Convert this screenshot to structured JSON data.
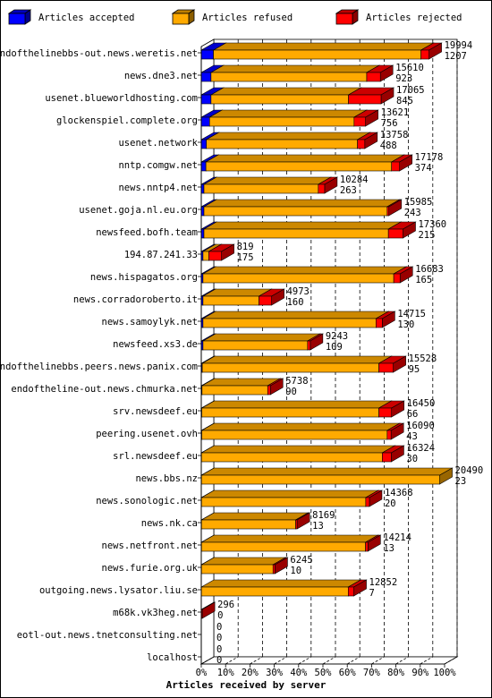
{
  "chart_data": {
    "type": "bar",
    "orientation": "horizontal",
    "stacked": true,
    "style": "3d",
    "xlabel": "Articles received by server",
    "xlim": [
      0,
      100
    ],
    "x_unit": "%",
    "xticks": [
      "0%",
      "10%",
      "20%",
      "30%",
      "40%",
      "50%",
      "60%",
      "70%",
      "80%",
      "90%",
      "100%"
    ],
    "grid": "vertical dashed",
    "legend_position": "top",
    "legend": [
      {
        "key": "accepted",
        "label": "Articles accepted",
        "color": "#0000ff"
      },
      {
        "key": "refused",
        "label": "Articles refused",
        "color": "#ffaa00"
      },
      {
        "key": "rejected",
        "label": "Articles rejected",
        "color": "#ff0000"
      }
    ],
    "rows": [
      {
        "server": "endofthelinebbs-out.news.weretis.net",
        "total": "19994",
        "accepted": "1207",
        "pct": [
          5.0,
          85.3,
          3.3
        ]
      },
      {
        "server": "news.dne3.net",
        "total": "15610",
        "accepted": "923",
        "pct": [
          4.0,
          64.0,
          5.6
        ]
      },
      {
        "server": "usenet.blueworldhosting.com",
        "total": "17065",
        "accepted": "845",
        "pct": [
          4.0,
          56.5,
          13.4
        ]
      },
      {
        "server": "glockenspiel.complete.org",
        "total": "13621",
        "accepted": "756",
        "pct": [
          3.4,
          59.4,
          4.7
        ]
      },
      {
        "server": "usenet.network",
        "total": "13758",
        "accepted": "488",
        "pct": [
          2.1,
          62.1,
          3.0
        ]
      },
      {
        "server": "nntp.comgw.net",
        "total": "17178",
        "accepted": "374",
        "pct": [
          1.9,
          76.3,
          3.3
        ]
      },
      {
        "server": "news.nntp4.net",
        "total": "10284",
        "accepted": "263",
        "pct": [
          1.1,
          47.0,
          2.6
        ]
      },
      {
        "server": "usenet.goja.nl.eu.org",
        "total": "15985",
        "accepted": "243",
        "pct": [
          1.1,
          75.3,
          0.7
        ]
      },
      {
        "server": "newsfeed.bofh.team",
        "total": "17360",
        "accepted": "215",
        "pct": [
          1.1,
          75.8,
          6.0
        ]
      },
      {
        "server": "194.87.241.33",
        "total": "819",
        "accepted": "175",
        "pct": [
          0.7,
          2.4,
          5.2
        ]
      },
      {
        "server": "news.hispagatos.org",
        "total": "16683",
        "accepted": "165",
        "pct": [
          0.7,
          78.4,
          2.6
        ]
      },
      {
        "server": "news.corradoroberto.it",
        "total": "4973",
        "accepted": "160",
        "pct": [
          0.7,
          23.0,
          5.2
        ]
      },
      {
        "server": "news.samoylyk.net",
        "total": "14715",
        "accepted": "130",
        "pct": [
          0.7,
          71.1,
          2.6
        ]
      },
      {
        "server": "newsfeed.xs3.de",
        "total": "9243",
        "accepted": "109",
        "pct": [
          0.7,
          43.0,
          1.1
        ]
      },
      {
        "server": "endofthelinebbs.peers.news.panix.com",
        "total": "15528",
        "accepted": "95",
        "pct": [
          0.4,
          72.6,
          5.9
        ]
      },
      {
        "server": "endoftheline-out.news.chmurka.net",
        "total": "5738",
        "accepted": "90",
        "pct": [
          0.3,
          27.0,
          1.1
        ]
      },
      {
        "server": "srv.newsdeef.eu",
        "total": "16450",
        "accepted": "66",
        "pct": [
          0.2,
          72.8,
          5.2
        ]
      },
      {
        "server": "peering.usenet.ovh",
        "total": "16090",
        "accepted": "43",
        "pct": [
          0.2,
          76.2,
          1.6
        ]
      },
      {
        "server": "srl.newsdeef.eu",
        "total": "16324",
        "accepted": "30",
        "pct": [
          0.1,
          74.3,
          3.7
        ]
      },
      {
        "server": "news.bbs.nz",
        "total": "20490",
        "accepted": "23",
        "pct": [
          0.1,
          97.9,
          0.0
        ]
      },
      {
        "server": "news.sonologic.net",
        "total": "14368",
        "accepted": "20",
        "pct": [
          0.1,
          67.5,
          1.5
        ]
      },
      {
        "server": "news.nk.ca",
        "total": "8169",
        "accepted": "13",
        "pct": [
          0.1,
          38.7,
          0.6
        ]
      },
      {
        "server": "news.netfront.net",
        "total": "14214",
        "accepted": "13",
        "pct": [
          0.1,
          67.4,
          1.0
        ]
      },
      {
        "server": "news.furie.org.uk",
        "total": "6245",
        "accepted": "10",
        "pct": [
          0.1,
          29.4,
          0.8
        ]
      },
      {
        "server": "outgoing.news.lysator.liu.se",
        "total": "12852",
        "accepted": "7",
        "pct": [
          0.0,
          60.4,
          2.3
        ]
      },
      {
        "server": "m68k.vk3heg.net",
        "total": "296",
        "accepted": "0",
        "pct": [
          0.0,
          0.0,
          0.4
        ]
      },
      {
        "server": "eotl-out.news.tnetconsulting.net",
        "total": "0",
        "accepted": "0",
        "pct": [
          0.0,
          0.0,
          0.0
        ]
      },
      {
        "server": "localhost",
        "total": "0",
        "accepted": "0",
        "pct": [
          0.0,
          0.0,
          0.0
        ]
      }
    ]
  }
}
